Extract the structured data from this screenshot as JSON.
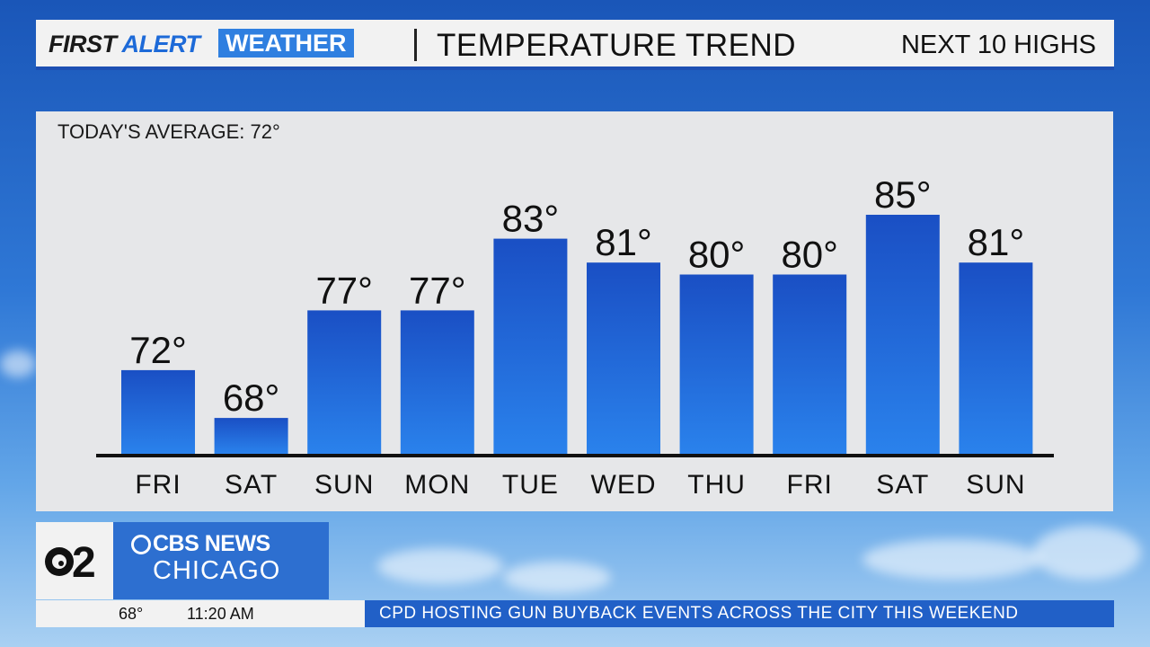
{
  "header": {
    "brand_first": "FIRST",
    "brand_alert": "ALERT",
    "brand_weather": "WEATHER",
    "title": "TEMPERATURE TREND",
    "right": "NEXT 10 HIGHS"
  },
  "panel": {
    "average_label": "TODAY'S AVERAGE: 72°"
  },
  "chart_data": {
    "type": "bar",
    "categories": [
      "FRI",
      "SAT",
      "SUN",
      "MON",
      "TUE",
      "WED",
      "THU",
      "FRI",
      "SAT",
      "SUN"
    ],
    "values": [
      72,
      68,
      77,
      77,
      83,
      81,
      80,
      80,
      85,
      81
    ],
    "value_labels": [
      "72°",
      "68°",
      "77°",
      "77°",
      "83°",
      "81°",
      "80°",
      "80°",
      "85°",
      "81°"
    ],
    "title": "TEMPERATURE TREND",
    "xlabel": "",
    "ylabel": "",
    "grid": false,
    "bar_color": "#1f66d8"
  },
  "logo": {
    "channel": "2",
    "network_top": "CBS NEWS",
    "network_bottom": "CHICAGO"
  },
  "ticker": {
    "temperature": "68°",
    "time": "11:20 AM",
    "headline": "CPD HOSTING GUN BUYBACK EVENTS ACROSS THE CITY THIS WEEKEND"
  },
  "colors": {
    "accent_blue": "#2f7fe0",
    "panel_gray": "#e6e7e9"
  }
}
